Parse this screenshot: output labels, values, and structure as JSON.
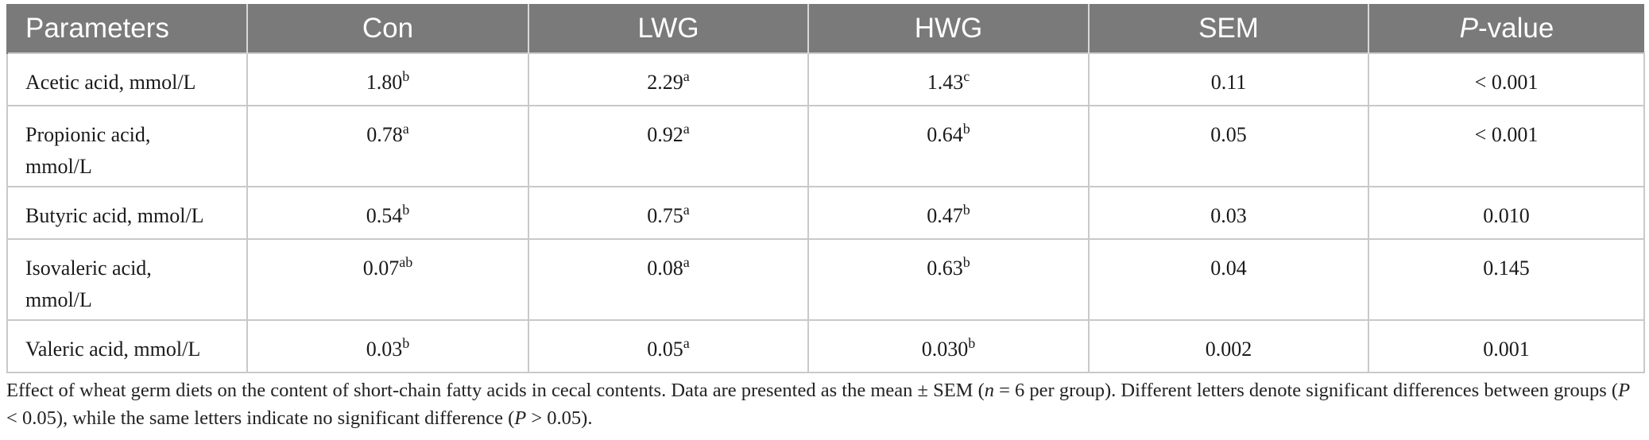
{
  "table": {
    "headers": {
      "parameters": "Parameters",
      "con": "Con",
      "lwg": "LWG",
      "hwg": "HWG",
      "sem": "SEM",
      "p_italic": "P",
      "p_rest": "-value"
    },
    "rows": [
      {
        "label": "Acetic acid, mmol/L",
        "con": {
          "value": "1.80",
          "sup": "b"
        },
        "lwg": {
          "value": "2.29",
          "sup": "a"
        },
        "hwg": {
          "value": "1.43",
          "sup": "c"
        },
        "sem": "0.11",
        "p": "< 0.001"
      },
      {
        "label_line1": "Propionic acid,",
        "label_line2": "mmol/L",
        "con": {
          "value": "0.78",
          "sup": "a"
        },
        "lwg": {
          "value": "0.92",
          "sup": "a"
        },
        "hwg": {
          "value": "0.64",
          "sup": "b"
        },
        "sem": "0.05",
        "p": "< 0.001"
      },
      {
        "label": "Butyric acid, mmol/L",
        "con": {
          "value": "0.54",
          "sup": "b"
        },
        "lwg": {
          "value": "0.75",
          "sup": "a"
        },
        "hwg": {
          "value": "0.47",
          "sup": "b"
        },
        "sem": "0.03",
        "p": "0.010"
      },
      {
        "label_line1": "Isovaleric acid,",
        "label_line2": "mmol/L",
        "con": {
          "value": "0.07",
          "sup": "ab"
        },
        "lwg": {
          "value": "0.08",
          "sup": "a"
        },
        "hwg": {
          "value": "0.63",
          "sup": "b"
        },
        "sem": "0.04",
        "p": "0.145"
      },
      {
        "label": "Valeric acid, mmol/L",
        "con": {
          "value": "0.03",
          "sup": "b"
        },
        "lwg": {
          "value": "0.05",
          "sup": "a"
        },
        "hwg": {
          "value": "0.030",
          "sup": "b"
        },
        "sem": "0.002",
        "p": "0.001"
      }
    ]
  },
  "caption": {
    "part1": "Effect of wheat germ diets on the content of short-chain fatty acids in cecal contents. Data are presented as the mean ± SEM (",
    "n_italic": "n",
    "part2": " = 6 per group). Different letters denote significant differences between groups (",
    "p1_italic": "P",
    "part3": " < 0.05), while the same letters indicate no significant difference (",
    "p2_italic": "P",
    "part4": " > 0.05)."
  },
  "colors": {
    "header_bg": "#7a7a7a",
    "header_text": "#ffffff",
    "border": "#c9c9c9"
  }
}
